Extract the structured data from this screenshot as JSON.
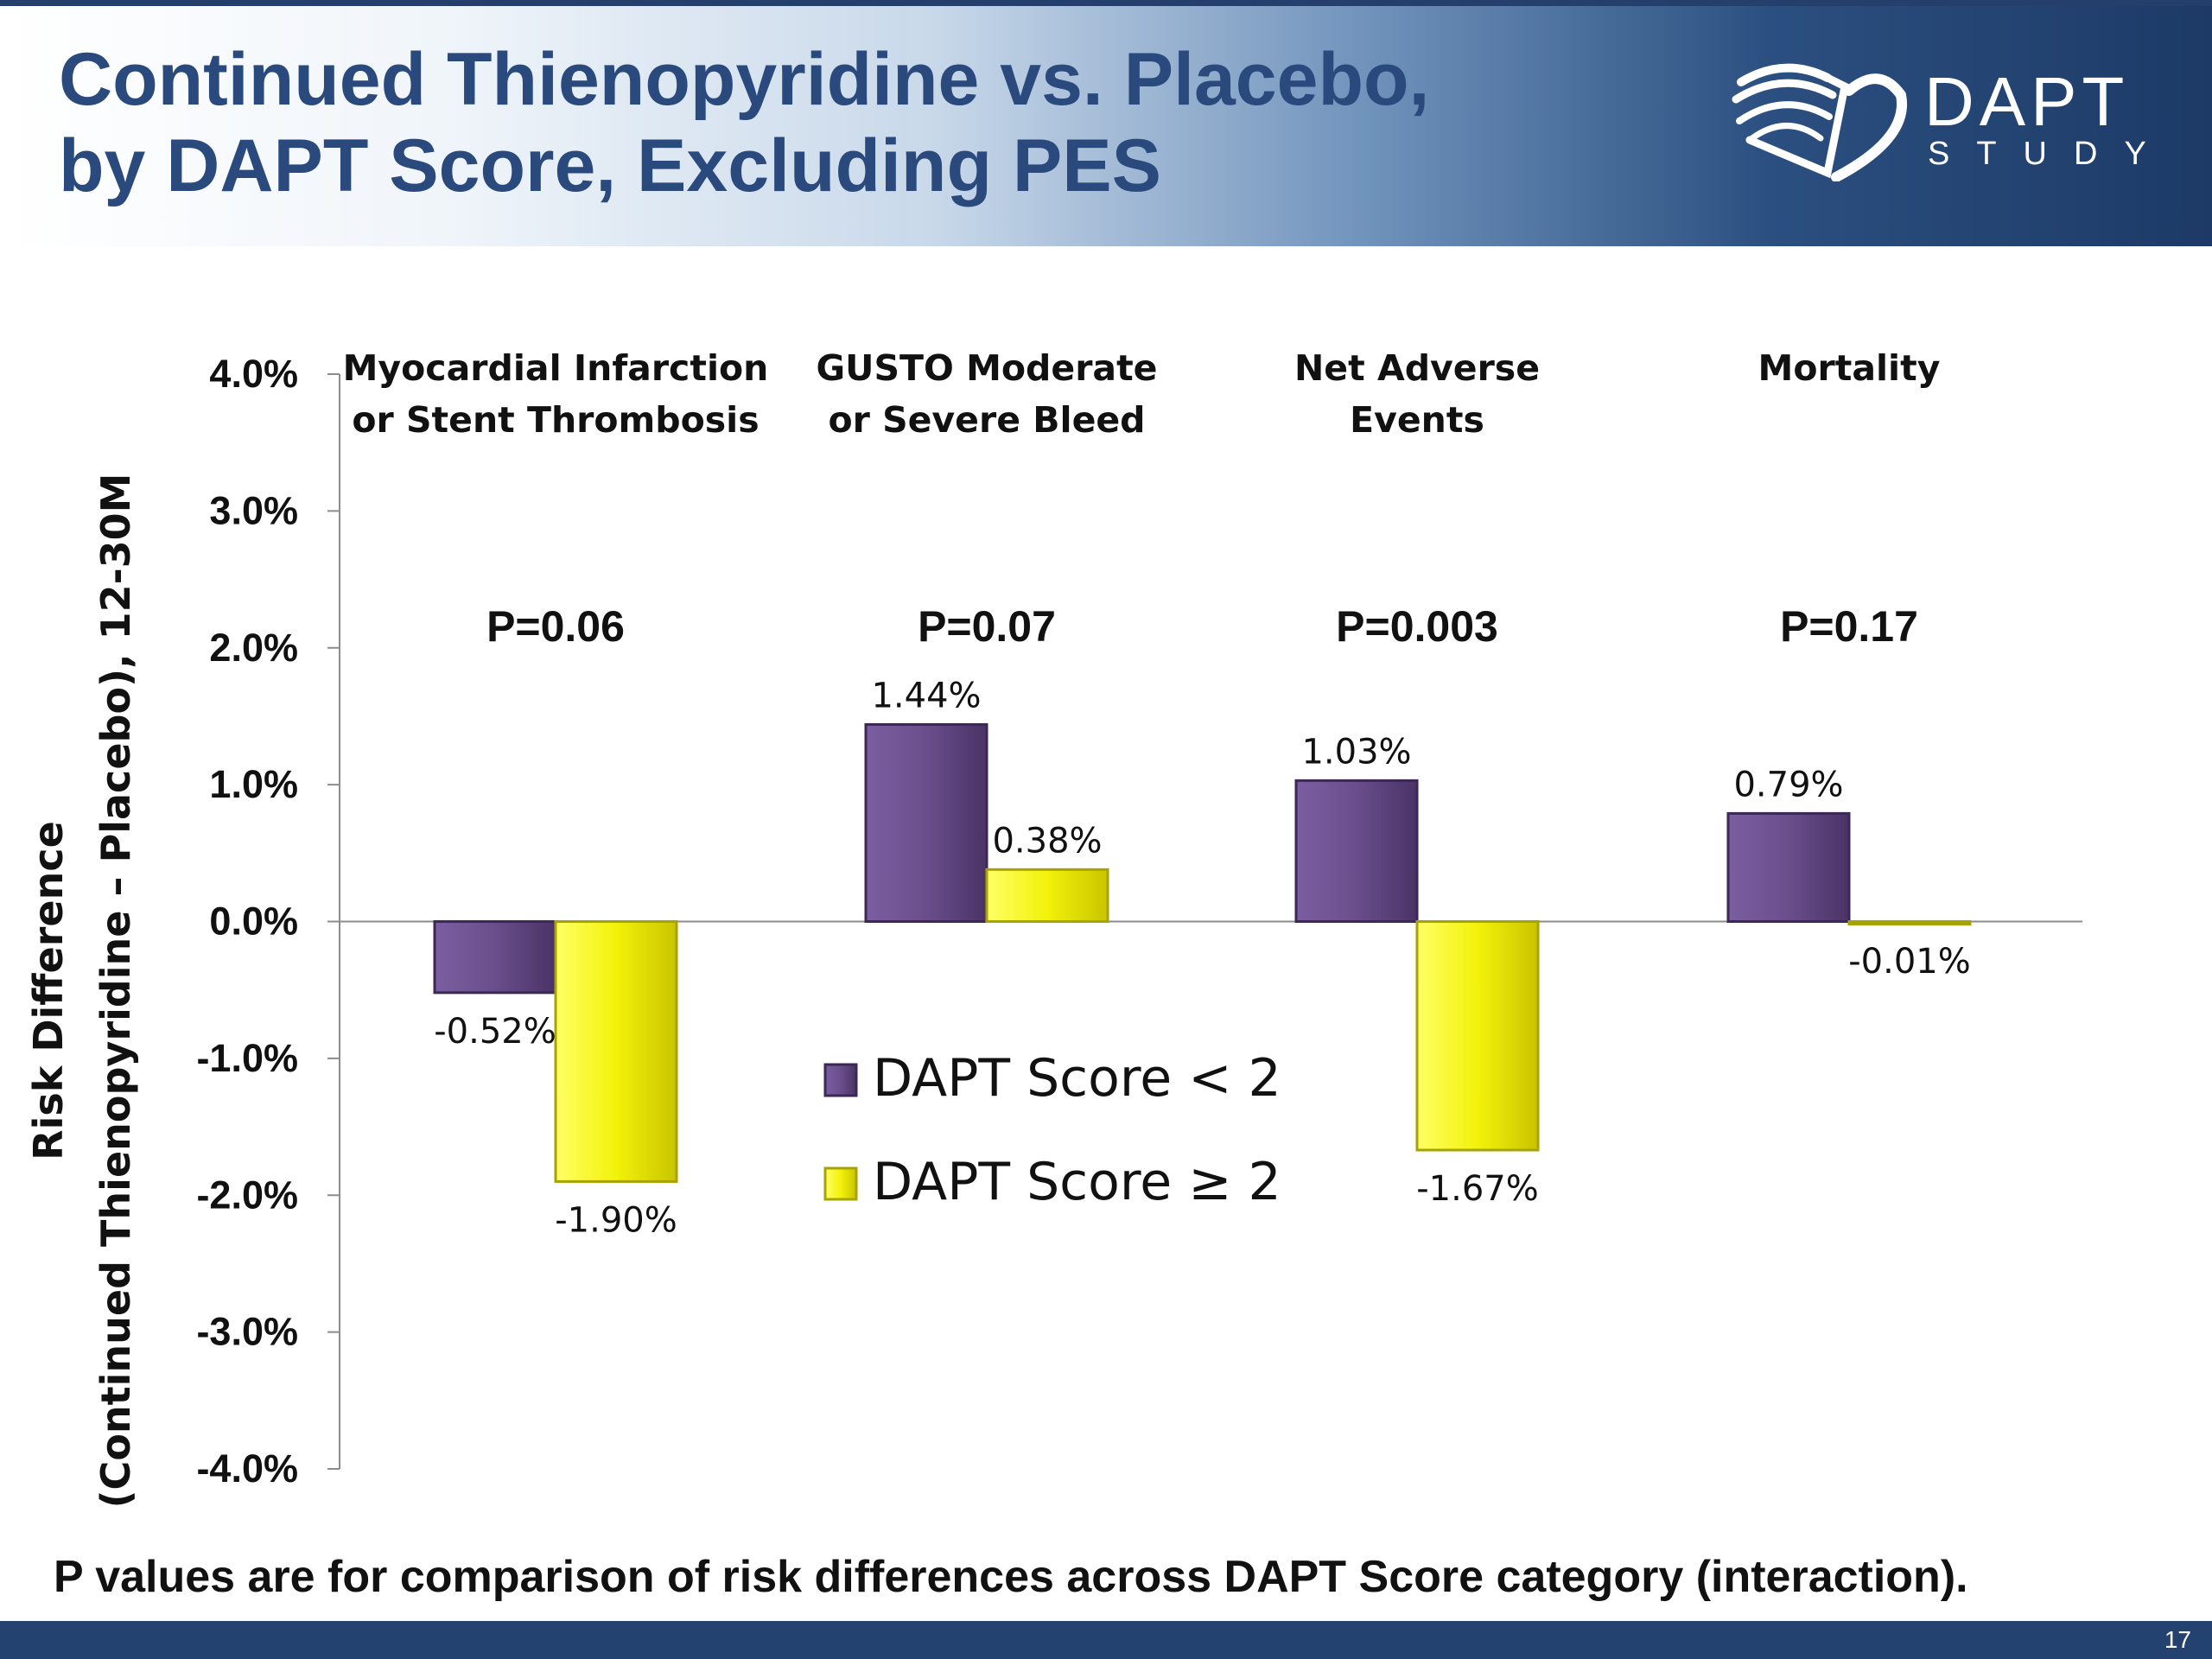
{
  "slide": {
    "title_line1": "Continued Thienopyridine vs. Placebo,",
    "title_line2": "by DAPT Score, Excluding PES",
    "logo_word": "DAPT",
    "logo_sub": "STUDY",
    "footnote": "P values are for comparison of risk differences across DAPT Score category (interaction).",
    "slide_number": "17"
  },
  "colors": {
    "series1": "#6a4e8c",
    "series2": "#f2f20a",
    "title": "#2a4a7d",
    "header_dark": "#1d3a66"
  },
  "chart_data": {
    "type": "bar",
    "ylabel_line1": "Risk Difference",
    "ylabel_line2": "(Continued Thienopyridine – Placebo), 12-30M",
    "ylim": [
      -4.0,
      4.0
    ],
    "yticks": [
      "4.0%",
      "3.0%",
      "2.0%",
      "1.0%",
      "0.0%",
      "-1.0%",
      "-2.0%",
      "-3.0%",
      "-4.0%"
    ],
    "categories": [
      [
        "Myocardial Infarction",
        "or Stent Thrombosis"
      ],
      [
        "GUSTO Moderate",
        "or Severe Bleed"
      ],
      [
        "Net Adverse",
        "Events"
      ],
      [
        "Mortality"
      ]
    ],
    "p_values": [
      "P=0.06",
      "P=0.07",
      "P=0.003",
      "P=0.17"
    ],
    "series": [
      {
        "name": "DAPT Score < 2",
        "values": [
          -0.52,
          1.44,
          1.03,
          0.79
        ],
        "labels": [
          "-0.52%",
          "1.44%",
          "1.03%",
          "0.79%"
        ]
      },
      {
        "name": "DAPT Score ≥ 2",
        "values": [
          -1.9,
          0.38,
          -1.67,
          -0.01
        ],
        "labels": [
          "-1.90%",
          "0.38%",
          "-1.67%",
          "-0.01%"
        ]
      }
    ],
    "legend_position": "center",
    "grid": false
  }
}
